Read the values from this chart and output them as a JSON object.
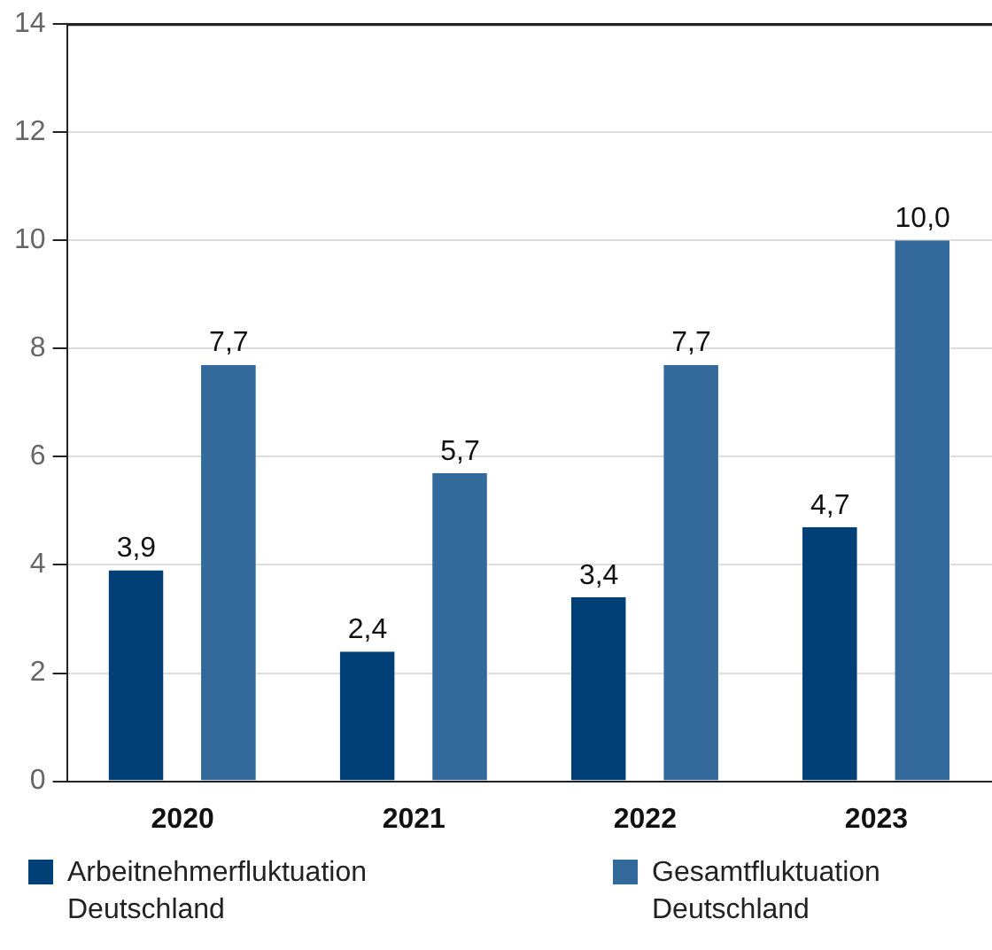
{
  "chart_data": {
    "type": "bar",
    "categories": [
      "2020",
      "2021",
      "2022",
      "2023"
    ],
    "series": [
      {
        "name": "Arbeitnehmerfluktuation Deutschland",
        "color": "#014076",
        "values": [
          3.9,
          2.4,
          3.4,
          4.7
        ],
        "value_labels": [
          "3,9",
          "2,4",
          "3,4",
          "4,7"
        ]
      },
      {
        "name": "Gesamtfluktuation Deutschland",
        "color": "#34699b",
        "values": [
          7.7,
          5.7,
          7.7,
          10.0
        ],
        "value_labels": [
          "7,7",
          "5,7",
          "7,7",
          "10,0"
        ]
      }
    ],
    "ylim": [
      0,
      14
    ],
    "yticks": [
      0,
      2,
      4,
      6,
      8,
      10,
      12,
      14
    ],
    "grid": "y",
    "legend": "bottom"
  }
}
